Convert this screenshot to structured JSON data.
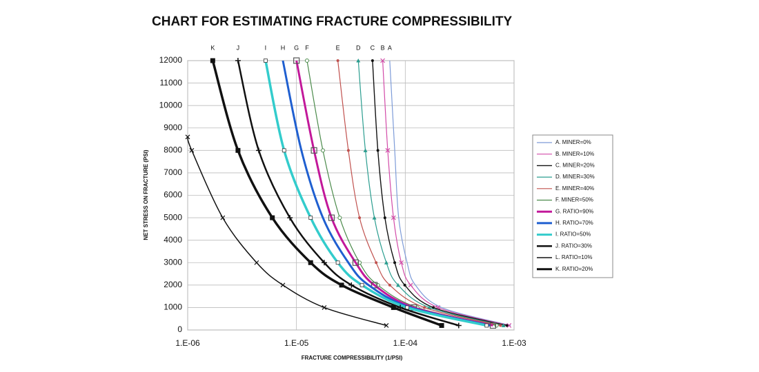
{
  "chart_data": {
    "type": "line",
    "title": "CHART FOR ESTIMATING FRACTURE COMPRESSIBILITY",
    "x_label": "FRACTURE COMPRESSIBILITY (1/PSI)",
    "y_label": "NET STRESS ON FRACTURE (PSI)",
    "x_scale": "log",
    "grid": true,
    "legend": "right",
    "xlim": [
      1e-06,
      0.001
    ],
    "xticks": [
      {
        "value": 1e-06,
        "label": "1.E-06"
      },
      {
        "value": 1e-05,
        "label": "1.E-05"
      },
      {
        "value": 0.0001,
        "label": "1.E-04"
      },
      {
        "value": 0.001,
        "label": "1.E-03"
      }
    ],
    "ylim": [
      0,
      12000
    ],
    "yticks": [
      0,
      1000,
      2000,
      3000,
      4000,
      5000,
      6000,
      7000,
      8000,
      9000,
      10000,
      11000,
      12000
    ],
    "series": [
      {
        "name": "A. MINER=0%",
        "label": "A",
        "color": "#7d9bd8",
        "width": 1.2,
        "marker": "none",
        "x": [
          7.2e-05,
          8e-05,
          8.7e-05,
          0.000104,
          0.000124,
          0.000216,
          0.00093
        ],
        "values": [
          12000,
          8000,
          5000,
          3000,
          2000,
          1000,
          200
        ]
      },
      {
        "name": "B. MINER=10%",
        "label": "B",
        "color": "#d24aa8",
        "width": 1.2,
        "marker": "x",
        "x": [
          6.2e-05,
          6.9e-05,
          7.8e-05,
          9.2e-05,
          0.000112,
          0.0002,
          0.0009
        ],
        "values": [
          12000,
          8000,
          5000,
          3000,
          2000,
          1000,
          200
        ]
      },
      {
        "name": "C. MINER=20%",
        "label": "C",
        "color": "#111111",
        "width": 1.4,
        "marker": "dot",
        "x": [
          5e-05,
          5.6e-05,
          6.5e-05,
          8e-05,
          9.9e-05,
          0.000181,
          0.00086
        ],
        "values": [
          12000,
          8000,
          5000,
          3000,
          2000,
          1000,
          200
        ]
      },
      {
        "name": "D. MINER=30%",
        "label": "D",
        "color": "#2a9d8f",
        "width": 1.2,
        "marker": "triangle",
        "x": [
          3.7e-05,
          4.3e-05,
          5.2e-05,
          6.7e-05,
          8.6e-05,
          0.000166,
          0.0008
        ],
        "values": [
          12000,
          8000,
          5000,
          3000,
          2000,
          1000,
          200
        ]
      },
      {
        "name": "E. MINER=40%",
        "label": "E",
        "color": "#c0504d",
        "width": 1.2,
        "marker": "dot",
        "x": [
          2.4e-05,
          3e-05,
          3.8e-05,
          5.4e-05,
          7.2e-05,
          0.00015,
          0.00075
        ],
        "values": [
          12000,
          8000,
          5000,
          3000,
          2000,
          1000,
          200
        ]
      },
      {
        "name": "F. MINER=50%",
        "label": "F",
        "color": "#4a8a4a",
        "width": 1.2,
        "marker": "circle",
        "x": [
          1.25e-05,
          1.75e-05,
          2.5e-05,
          3.8e-05,
          5.6e-05,
          0.000129,
          0.00069
        ],
        "values": [
          12000,
          8000,
          5000,
          3000,
          2000,
          1000,
          200
        ]
      },
      {
        "name": "G. RATIO=90%",
        "label": "G",
        "color": "#c2189a",
        "width": 3,
        "marker": "square-open",
        "x": [
          1e-05,
          1.45e-05,
          2.1e-05,
          3.5e-05,
          5.2e-05,
          0.00012,
          0.00064
        ],
        "values": [
          12000,
          8000,
          5000,
          3000,
          2000,
          1000,
          200
        ]
      },
      {
        "name": "H. RATIO=70%",
        "label": "H",
        "color": "#1f5fd0",
        "width": 3,
        "marker": "none",
        "x": [
          7.5e-06,
          1.11e-05,
          1.75e-05,
          3e-05,
          4.6e-05,
          0.000112,
          0.0006
        ],
        "values": [
          12000,
          8000,
          5000,
          3000,
          2000,
          1000,
          200
        ]
      },
      {
        "name": "I. RATIO=50%",
        "label": "I",
        "color": "#33cccc",
        "width": 3.5,
        "marker": "square-small",
        "x": [
          5.2e-06,
          7.7e-06,
          1.35e-05,
          2.4e-05,
          4e-05,
          0.000104,
          0.00056
        ],
        "values": [
          12000,
          8000,
          5000,
          3000,
          2000,
          1000,
          200
        ]
      },
      {
        "name": "J. RATIO=30%",
        "label": "J",
        "color": "#111111",
        "width": 2.5,
        "marker": "plus",
        "x": [
          2.9e-06,
          4.5e-06,
          8.7e-06,
          1.8e-05,
          3.2e-05,
          9e-05,
          0.00031
        ],
        "values": [
          12000,
          8000,
          5000,
          3000,
          2000,
          1000,
          200
        ]
      },
      {
        "name": "L. RATIO=10%",
        "color": "#111111",
        "width": 1.5,
        "marker": "x",
        "x": [
          1e-06,
          1.09e-06,
          2.1e-06,
          4.3e-06,
          7.5e-06,
          1.8e-05,
          6.7e-05
        ],
        "values": [
          8600,
          8000,
          5000,
          3000,
          2000,
          1000,
          200
        ]
      },
      {
        "name": "K. RATIO=20%",
        "label": "K",
        "color": "#111111",
        "width": 3.5,
        "marker": "square",
        "x": [
          1.7e-06,
          2.9e-06,
          6e-06,
          1.35e-05,
          2.6e-05,
          7.8e-05,
          0.000216
        ],
        "values": [
          12000,
          8000,
          5000,
          3000,
          2000,
          1000,
          200
        ]
      }
    ]
  }
}
